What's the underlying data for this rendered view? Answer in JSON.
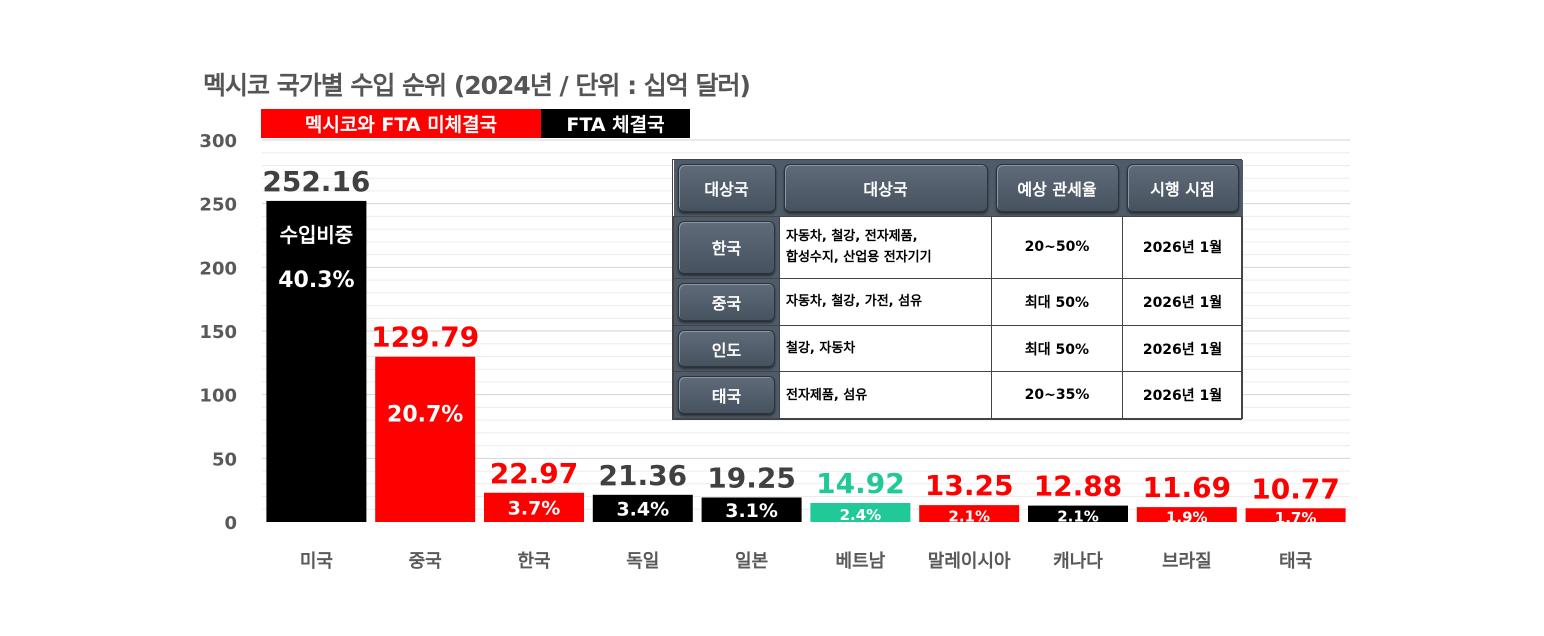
{
  "chart_data": {
    "type": "bar",
    "title": "멕시코 국가별 수입 순위 (2024년 / 단위 : 십억 달러)",
    "ylim": [
      0,
      300
    ],
    "y_ticks": [
      "0",
      "50",
      "100",
      "150",
      "200",
      "250",
      "300"
    ],
    "categories": [
      "미국",
      "중국",
      "한국",
      "독일",
      "일본",
      "베트남",
      "말레이시아",
      "캐나다",
      "브라질",
      "태국"
    ],
    "values": [
      252.16,
      129.79,
      22.97,
      21.36,
      19.25,
      14.92,
      13.25,
      12.88,
      11.69,
      10.77
    ],
    "value_labels": [
      "252.16",
      "129.79",
      "22.97",
      "21.36",
      "19.25",
      "14.92",
      "13.25",
      "12.88",
      "11.69",
      "10.77"
    ],
    "shares": [
      "40.3%",
      "20.7%",
      "3.7%",
      "3.4%",
      "3.1%",
      "2.4%",
      "2.1%",
      "2.1%",
      "1.9%",
      "1.7%"
    ],
    "share_caption": "수입비중",
    "bar_colors": [
      "#000000",
      "#ff0000",
      "#ff0000",
      "#000000",
      "#000000",
      "#20c997",
      "#ff0000",
      "#000000",
      "#ff0000",
      "#ff0000"
    ],
    "value_label_colors": [
      "#404040",
      "#ff0000",
      "#ff0000",
      "#404040",
      "#404040",
      "#20c997",
      "#ff0000",
      "#ff0000",
      "#ff0000",
      "#ff0000"
    ],
    "legend": [
      {
        "label": "멕시코와 FTA 미체결국",
        "color": "#ff0000"
      },
      {
        "label": "FTA 체결국",
        "color": "#000000"
      }
    ],
    "grid": true
  },
  "tariff_table": {
    "headers": [
      "대상국",
      "대상국",
      "예상 관세율",
      "시행 시점"
    ],
    "rows": [
      {
        "country": "한국",
        "items_line1": "자동차, 철강, 전자제품,",
        "items_line2": "합성수지, 산업용 전자기기",
        "rate": "20~50%",
        "start": "2026년 1월"
      },
      {
        "country": "중국",
        "items_line1": "자동차, 철강, 가전, 섬유",
        "items_line2": "",
        "rate": "최대 50%",
        "start": "2026년 1월"
      },
      {
        "country": "인도",
        "items_line1": "철강, 자동차",
        "items_line2": "",
        "rate": "최대 50%",
        "start": "2026년 1월"
      },
      {
        "country": "태국",
        "items_line1": "전자제품, 섬유",
        "items_line2": "",
        "rate": "20~35%",
        "start": "2026년 1월"
      }
    ]
  }
}
